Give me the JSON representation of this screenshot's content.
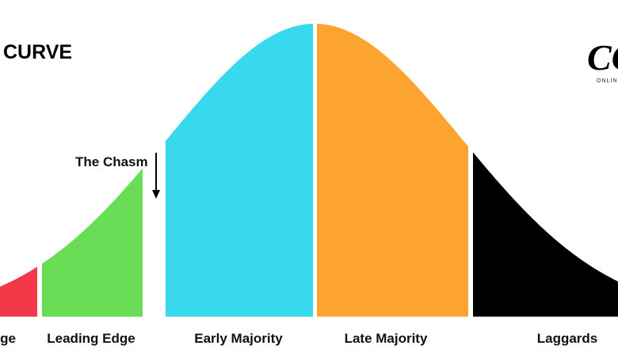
{
  "header": {
    "title": "CURVE"
  },
  "logo": {
    "mark": "CO",
    "text": "ONLIN"
  },
  "chasm": {
    "label": "The Chasm"
  },
  "segments": [
    {
      "label": "ge",
      "color": "#f2394a"
    },
    {
      "label": "Leading Edge",
      "color": "#68dd55"
    },
    {
      "label": "Early Majority",
      "color": "#38d8ee"
    },
    {
      "label": "Late Majority",
      "color": "#fca42f"
    },
    {
      "label": "Laggards",
      "color": "#000000"
    }
  ]
}
